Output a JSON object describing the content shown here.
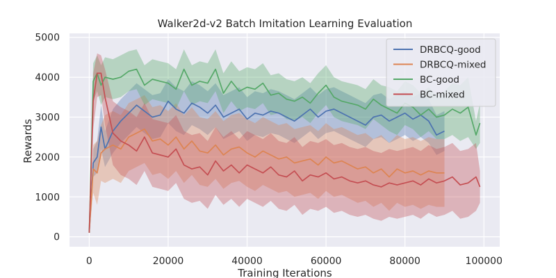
{
  "chart_data": {
    "type": "line",
    "title": "Walker2d-v2 Batch Imitation Learning Evaluation",
    "xlabel": "Training Iterations",
    "ylabel": "Rewards",
    "xlim": [
      -5000,
      104000
    ],
    "ylim": [
      -250,
      5100
    ],
    "xticks": [
      0,
      20000,
      40000,
      60000,
      80000,
      100000
    ],
    "yticks": [
      0,
      1000,
      2000,
      3000,
      4000,
      5000
    ],
    "grid": true,
    "shaded_bands": true,
    "legend_position": "top-right",
    "series": [
      {
        "name": "DRBCQ-good",
        "color": "#4c72b0",
        "x": [
          0,
          1000,
          2000,
          3000,
          4000,
          6000,
          8000,
          10000,
          12000,
          14000,
          16000,
          18000,
          20000,
          22000,
          24000,
          26000,
          28000,
          30000,
          32000,
          34000,
          36000,
          38000,
          40000,
          42000,
          44000,
          46000,
          48000,
          50000,
          52000,
          54000,
          56000,
          58000,
          60000,
          62000,
          64000,
          66000,
          68000,
          70000,
          72000,
          74000,
          76000,
          78000,
          80000,
          82000,
          84000,
          86000,
          88000,
          90000
        ],
        "y": [
          100,
          1850,
          2000,
          2750,
          2200,
          2650,
          2900,
          3100,
          3300,
          3150,
          3000,
          3050,
          3400,
          3200,
          3100,
          3350,
          3250,
          3100,
          3300,
          3000,
          3100,
          3200,
          2950,
          3100,
          3050,
          3150,
          3100,
          3000,
          2900,
          3050,
          3200,
          3000,
          3150,
          3200,
          3100,
          3000,
          2900,
          2800,
          3000,
          3050,
          2900,
          3000,
          3100,
          2950,
          3050,
          2900,
          2550,
          2650
        ],
        "lower": [
          80,
          1500,
          1600,
          2200,
          1750,
          2100,
          2350,
          2550,
          2750,
          2600,
          2450,
          2500,
          2850,
          2650,
          2550,
          2800,
          2700,
          2550,
          2750,
          2450,
          2550,
          2650,
          2400,
          2550,
          2500,
          2600,
          2550,
          2450,
          2350,
          2500,
          2650,
          2450,
          2600,
          2650,
          2550,
          2450,
          2350,
          2250,
          2450,
          2500,
          2350,
          2450,
          2550,
          2400,
          2500,
          2350,
          2050,
          2150
        ],
        "upper": [
          120,
          2200,
          2400,
          3300,
          2650,
          3200,
          3450,
          3650,
          3850,
          3700,
          3550,
          3600,
          3950,
          3750,
          3650,
          3900,
          3800,
          3650,
          3850,
          3550,
          3650,
          3750,
          3500,
          3650,
          3600,
          3700,
          3650,
          3550,
          3450,
          3600,
          3750,
          3550,
          3700,
          3750,
          3650,
          3550,
          3450,
          3350,
          3550,
          3600,
          3450,
          3550,
          3650,
          3500,
          3600,
          3450,
          3050,
          3150
        ]
      },
      {
        "name": "DRBCQ-mixed",
        "color": "#dd8452",
        "x": [
          0,
          1000,
          2000,
          3000,
          4000,
          6000,
          8000,
          10000,
          12000,
          14000,
          16000,
          18000,
          20000,
          22000,
          24000,
          26000,
          28000,
          30000,
          32000,
          34000,
          36000,
          38000,
          40000,
          42000,
          44000,
          46000,
          48000,
          50000,
          52000,
          54000,
          56000,
          58000,
          60000,
          62000,
          64000,
          66000,
          68000,
          70000,
          72000,
          74000,
          76000,
          78000,
          80000,
          82000,
          84000,
          86000,
          88000,
          90000
        ],
        "y": [
          100,
          1700,
          1600,
          2100,
          2200,
          2300,
          2200,
          2500,
          2600,
          2700,
          2400,
          2450,
          2300,
          2500,
          2200,
          2400,
          2150,
          2100,
          2300,
          2050,
          2200,
          2250,
          2100,
          2000,
          2150,
          2050,
          1950,
          2000,
          1850,
          1900,
          1950,
          1800,
          2000,
          1850,
          1900,
          1800,
          1700,
          1750,
          1600,
          1700,
          1500,
          1700,
          1600,
          1650,
          1550,
          1650,
          1600,
          1600
        ],
        "lower": [
          80,
          1100,
          800,
          1400,
          1350,
          1450,
          1350,
          1650,
          1750,
          1850,
          1550,
          1600,
          1450,
          1650,
          1350,
          1550,
          1300,
          1250,
          1450,
          1200,
          1350,
          1400,
          1250,
          1150,
          1300,
          1200,
          1100,
          1150,
          1000,
          1050,
          1100,
          950,
          1150,
          1000,
          1050,
          950,
          850,
          900,
          750,
          850,
          650,
          850,
          750,
          800,
          700,
          800,
          750,
          750
        ],
        "upper": [
          120,
          2300,
          2400,
          2800,
          3050,
          3150,
          3050,
          3350,
          3450,
          3550,
          3250,
          3300,
          3150,
          3350,
          3050,
          3250,
          3000,
          2950,
          3150,
          2900,
          3050,
          3100,
          2950,
          2850,
          3000,
          2900,
          2800,
          2850,
          2700,
          2750,
          2800,
          2650,
          2850,
          2700,
          2750,
          2650,
          2550,
          2600,
          2450,
          2550,
          2350,
          2550,
          2450,
          2500,
          2400,
          2500,
          2450,
          2450
        ]
      },
      {
        "name": "BC-good",
        "color": "#55a868",
        "x": [
          0,
          1000,
          2000,
          3000,
          4000,
          6000,
          8000,
          10000,
          12000,
          14000,
          16000,
          18000,
          20000,
          22000,
          24000,
          26000,
          28000,
          30000,
          32000,
          34000,
          36000,
          38000,
          40000,
          42000,
          44000,
          46000,
          48000,
          50000,
          52000,
          54000,
          56000,
          58000,
          60000,
          62000,
          64000,
          66000,
          68000,
          70000,
          72000,
          74000,
          76000,
          78000,
          80000,
          82000,
          84000,
          86000,
          88000,
          90000,
          92000,
          94000,
          96000,
          98000,
          99000
        ],
        "y": [
          100,
          3900,
          4100,
          3800,
          4000,
          3950,
          4000,
          4150,
          4200,
          3800,
          3950,
          3900,
          3850,
          3700,
          4200,
          3800,
          3900,
          3850,
          4200,
          3600,
          3900,
          3650,
          3750,
          3700,
          3850,
          3550,
          3600,
          3450,
          3400,
          3500,
          3350,
          3600,
          3800,
          3500,
          3400,
          3350,
          3300,
          3200,
          3450,
          3300,
          3200,
          3100,
          3350,
          3250,
          3050,
          3200,
          3000,
          3050,
          3200,
          3100,
          3250,
          2550,
          2850
        ],
        "lower": [
          80,
          3400,
          3650,
          3300,
          3500,
          3450,
          3500,
          3650,
          3700,
          3300,
          3450,
          3400,
          3350,
          3200,
          3650,
          3300,
          3400,
          3350,
          3650,
          3100,
          3400,
          3150,
          3250,
          3200,
          3350,
          3050,
          3100,
          2950,
          2900,
          3000,
          2850,
          3100,
          3300,
          3000,
          2900,
          2850,
          2800,
          2700,
          2950,
          2800,
          2650,
          2550,
          2800,
          2700,
          2500,
          2650,
          2450,
          2450,
          2550,
          2400,
          2500,
          2200,
          2350
        ],
        "upper": [
          120,
          4350,
          4550,
          4300,
          4500,
          4450,
          4550,
          4650,
          4700,
          4300,
          4450,
          4400,
          4350,
          4200,
          4700,
          4300,
          4400,
          4350,
          4700,
          4100,
          4400,
          4150,
          4250,
          4200,
          4350,
          4050,
          4100,
          3950,
          3900,
          4000,
          3850,
          4100,
          4300,
          4000,
          3900,
          3850,
          3800,
          3700,
          3950,
          3800,
          3750,
          3650,
          3900,
          3800,
          3600,
          3750,
          3550,
          3650,
          3850,
          3800,
          4000,
          2900,
          3350
        ]
      },
      {
        "name": "BC-mixed",
        "color": "#c44e52",
        "x": [
          0,
          1000,
          2000,
          3000,
          4000,
          6000,
          8000,
          10000,
          12000,
          14000,
          16000,
          18000,
          20000,
          22000,
          24000,
          26000,
          28000,
          30000,
          32000,
          34000,
          36000,
          38000,
          40000,
          42000,
          44000,
          46000,
          48000,
          50000,
          52000,
          54000,
          56000,
          58000,
          60000,
          62000,
          64000,
          66000,
          68000,
          70000,
          72000,
          74000,
          76000,
          78000,
          80000,
          82000,
          84000,
          86000,
          88000,
          90000,
          92000,
          94000,
          96000,
          98000,
          99000
        ],
        "y": [
          100,
          3400,
          4100,
          4100,
          3500,
          2600,
          2400,
          2300,
          2150,
          2500,
          2100,
          2050,
          2000,
          2200,
          1800,
          1700,
          1750,
          1550,
          1900,
          1650,
          1800,
          1600,
          1800,
          1700,
          1600,
          1750,
          1550,
          1500,
          1650,
          1400,
          1550,
          1500,
          1600,
          1450,
          1500,
          1400,
          1350,
          1400,
          1300,
          1250,
          1350,
          1300,
          1350,
          1400,
          1300,
          1450,
          1350,
          1400,
          1500,
          1300,
          1350,
          1500,
          1250
        ],
        "lower": [
          80,
          2700,
          3500,
          3550,
          2800,
          1800,
          1550,
          1450,
          1300,
          1650,
          1250,
          1200,
          1150,
          1350,
          950,
          850,
          900,
          700,
          1050,
          800,
          950,
          750,
          950,
          850,
          750,
          900,
          700,
          650,
          800,
          550,
          700,
          650,
          750,
          600,
          650,
          550,
          500,
          550,
          450,
          400,
          500,
          450,
          500,
          550,
          450,
          600,
          500,
          550,
          650,
          450,
          500,
          650,
          850
        ],
        "upper": [
          120,
          4100,
          4600,
          4550,
          4200,
          3400,
          3250,
          3150,
          3000,
          3350,
          2950,
          2900,
          2850,
          3050,
          2650,
          2550,
          2600,
          2400,
          2750,
          2500,
          2650,
          2450,
          2650,
          2550,
          2450,
          2600,
          2400,
          2350,
          2500,
          2250,
          2400,
          2350,
          2450,
          2300,
          2350,
          2250,
          2200,
          2250,
          2150,
          2100,
          2200,
          2150,
          2200,
          2250,
          2150,
          2300,
          2200,
          2250,
          2350,
          2150,
          2200,
          2350,
          1650
        ]
      }
    ]
  }
}
